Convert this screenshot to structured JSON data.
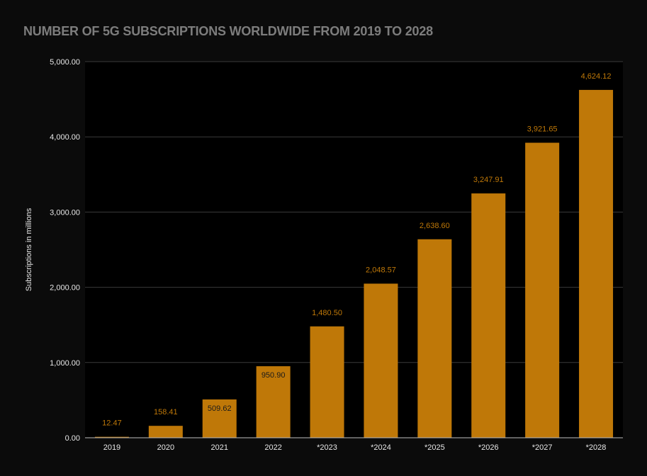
{
  "chart_data": {
    "type": "bar",
    "title": "NUMBER OF 5G SUBSCRIPTIONS WORLDWIDE FROM 2019 TO 2028",
    "xlabel": "",
    "ylabel": "Subscriptions in millions",
    "ylim": [
      0,
      5000
    ],
    "yticks": [
      "0.00",
      "1,000.00",
      "2,000.00",
      "3,000.00",
      "4,000.00",
      "5,000.00"
    ],
    "categories": [
      "2019",
      "2020",
      "2021",
      "2022",
      "*2023",
      "*2024",
      "*2025",
      "*2026",
      "*2027",
      "*2028"
    ],
    "values": [
      12.47,
      158.41,
      509.62,
      950.9,
      1480.5,
      2048.57,
      2638.6,
      3247.91,
      3921.65,
      4624.12
    ],
    "data_labels": [
      "12.47",
      "158.41",
      "509.62",
      "950.90",
      "1,480.50",
      "2,048.57",
      "2,638.60",
      "3,247.91",
      "3,921.65",
      "4,624.12"
    ],
    "grid": true,
    "legend": "none",
    "colors": {
      "bar": "#bf7808",
      "background": "#0b0b0b",
      "plot_background": "#000000",
      "grid": "#3a3a3a",
      "title": "#7d7d7d",
      "label_outside": "#bf7808",
      "label_inside": "#1a1a1a"
    }
  }
}
